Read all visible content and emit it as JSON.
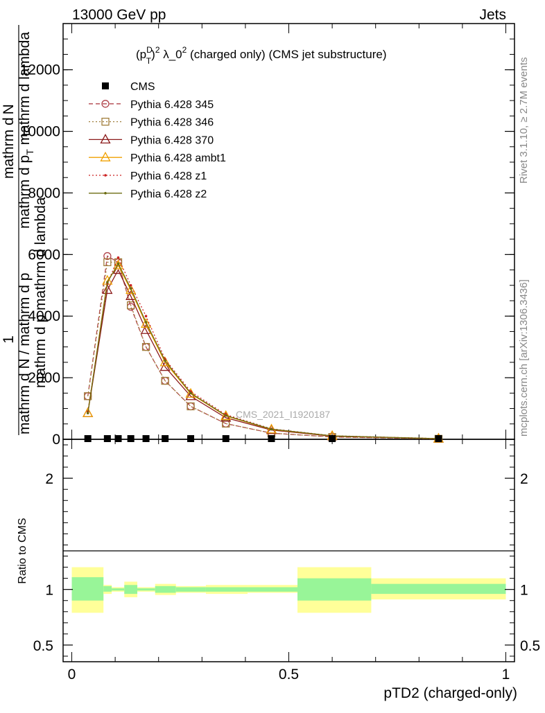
{
  "header": {
    "energy": "13000 GeV pp",
    "category": "Jets"
  },
  "plot_title": {
    "base": "(p",
    "sup_d": "D",
    "sub_t": "T",
    "close": ")",
    "sup_2": "2",
    "lambda": " λ_0",
    "sup_2b": "2",
    "rest": " (charged only) (CMS jet substructure)"
  },
  "ylabel_main": {
    "one": "1",
    "denominator": "mathrm d N / mathrm d p",
    "frac_num": "mathrm d",
    "frac_num2": "N",
    "frac_den": "mathrm d p",
    "frac_sub": "T",
    "frac_den2": " mathrm d lambda",
    "line2": "mathrm d p mathrm d lambda"
  },
  "ylabel_ratio": "Ratio to CMS",
  "xlabel": "pTD2 (charged-only)",
  "watermark": "CMS_2021_I1920187",
  "side_top": "Rivet 3.1.10, ≥ 2.7M events",
  "side_bottom": "mcplots.cern.ch [arXiv:1306.3436]",
  "legend": [
    {
      "label": "CMS",
      "color": "#000000",
      "marker": "square-filled",
      "dash": "none"
    },
    {
      "label": "Pythia 6.428 345",
      "color": "#b0434a",
      "marker": "circle",
      "dash": "dashed"
    },
    {
      "label": "Pythia 6.428 346",
      "color": "#a07d3a",
      "marker": "square",
      "dash": "dotted"
    },
    {
      "label": "Pythia 6.428 370",
      "color": "#8b1a1a",
      "marker": "triangle",
      "dash": "solid"
    },
    {
      "label": "Pythia 6.428 ambt1",
      "color": "#f0a000",
      "marker": "triangle",
      "dash": "solid"
    },
    {
      "label": "Pythia 6.428 z1",
      "color": "#cc2222",
      "marker": "dot",
      "dash": "dotted"
    },
    {
      "label": "Pythia 6.428 z2",
      "color": "#6b6b10",
      "marker": "dot",
      "dash": "solid"
    }
  ],
  "chart_data": [
    {
      "type": "line",
      "panel": "main",
      "xlim": [
        -0.02,
        1.02
      ],
      "ylim": [
        0,
        13500
      ],
      "y_ticks": [
        {
          "v": 0,
          "label": "0"
        },
        {
          "v": 2000,
          "label": "2000"
        },
        {
          "v": 4000,
          "label": "4000"
        },
        {
          "v": 6000,
          "label": "6000"
        },
        {
          "v": 8000,
          "label": "8000"
        },
        {
          "v": 10000,
          "label": "10000"
        },
        {
          "v": 12000,
          "label": "12000"
        }
      ],
      "x": [
        0.037,
        0.082,
        0.107,
        0.136,
        0.171,
        0.215,
        0.274,
        0.355,
        0.46,
        0.6,
        0.845
      ],
      "cms": [
        0,
        0,
        0,
        0,
        0,
        0,
        0,
        0,
        0,
        0,
        0
      ],
      "series": [
        {
          "name": "Pythia 6.428 345",
          "values": [
            1400,
            5950,
            5750,
            4300,
            3000,
            1900,
            1070,
            510,
            200,
            75,
            15
          ]
        },
        {
          "name": "Pythia 6.428 346",
          "values": [
            1400,
            5750,
            5750,
            4350,
            3000,
            1900,
            1070,
            510,
            200,
            75,
            15
          ]
        },
        {
          "name": "Pythia 6.428 370",
          "values": [
            850,
            4850,
            5500,
            4650,
            3550,
            2350,
            1400,
            700,
            300,
            100,
            20
          ]
        },
        {
          "name": "Pythia 6.428 ambt1",
          "values": [
            850,
            5150,
            5650,
            4850,
            3750,
            2500,
            1480,
            760,
            320,
            110,
            22
          ]
        },
        {
          "name": "Pythia 6.428 z1",
          "values": [
            900,
            5050,
            5900,
            5000,
            4000,
            2600,
            1550,
            800,
            340,
            115,
            24
          ]
        },
        {
          "name": "Pythia 6.428 z2",
          "values": [
            850,
            5100,
            5700,
            4900,
            3800,
            2550,
            1500,
            770,
            330,
            112,
            23
          ]
        }
      ]
    },
    {
      "type": "area",
      "panel": "ratio",
      "xlim": [
        -0.02,
        1.02
      ],
      "ylim": [
        0.35,
        2.35
      ],
      "y_ticks": [
        {
          "v": 0.5,
          "label": "0.5"
        },
        {
          "v": 1,
          "label": "1"
        },
        {
          "v": 2,
          "label": "2"
        }
      ],
      "x_ticks": [
        {
          "v": 0,
          "label": "0"
        },
        {
          "v": 0.5,
          "label": "0.5"
        },
        {
          "v": 1,
          "label": "1"
        }
      ],
      "bins": [
        {
          "x0": 0.0,
          "x1": 0.073,
          "g": [
            0.9,
            1.11
          ],
          "y": [
            0.79,
            1.2
          ]
        },
        {
          "x0": 0.073,
          "x1": 0.092,
          "g": [
            0.98,
            1.03
          ],
          "y": [
            0.96,
            1.04
          ]
        },
        {
          "x0": 0.092,
          "x1": 0.121,
          "g": [
            0.99,
            1.01
          ],
          "y": [
            0.98,
            1.02
          ]
        },
        {
          "x0": 0.121,
          "x1": 0.151,
          "g": [
            0.96,
            1.04
          ],
          "y": [
            0.93,
            1.07
          ]
        },
        {
          "x0": 0.151,
          "x1": 0.192,
          "g": [
            0.99,
            1.01
          ],
          "y": [
            0.98,
            1.02
          ]
        },
        {
          "x0": 0.192,
          "x1": 0.24,
          "g": [
            0.97,
            1.03
          ],
          "y": [
            0.95,
            1.05
          ]
        },
        {
          "x0": 0.24,
          "x1": 0.309,
          "g": [
            0.98,
            1.02
          ],
          "y": [
            0.97,
            1.03
          ]
        },
        {
          "x0": 0.309,
          "x1": 0.405,
          "g": [
            0.98,
            1.02
          ],
          "y": [
            0.96,
            1.04
          ]
        },
        {
          "x0": 0.405,
          "x1": 0.52,
          "g": [
            0.98,
            1.02
          ],
          "y": [
            0.97,
            1.04
          ]
        },
        {
          "x0": 0.52,
          "x1": 0.69,
          "g": [
            0.9,
            1.1
          ],
          "y": [
            0.79,
            1.2
          ]
        },
        {
          "x0": 0.69,
          "x1": 1.0,
          "g": [
            0.96,
            1.05
          ],
          "y": [
            0.91,
            1.1
          ]
        }
      ]
    }
  ]
}
